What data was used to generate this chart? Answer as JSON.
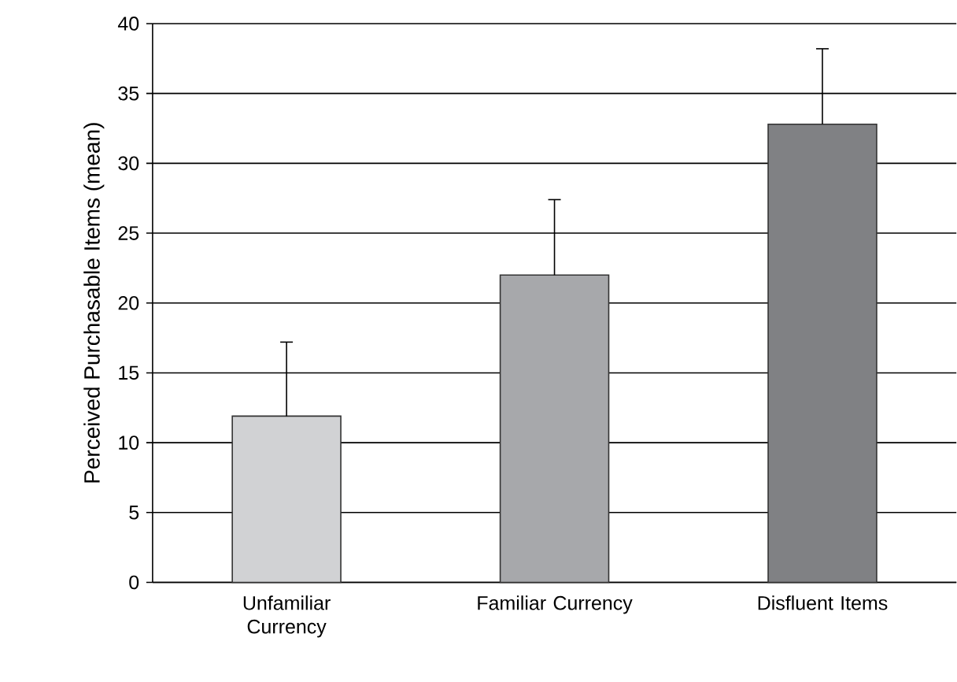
{
  "chart_data": {
    "type": "bar",
    "ylabel": "Perceived Purchasable Items (mean)",
    "categories": [
      "Unfamiliar Currency",
      "Familiar Currency",
      "Disfluent Items"
    ],
    "values": [
      11.9,
      22.0,
      32.8
    ],
    "errors": [
      5.3,
      5.4,
      5.4
    ],
    "colors": [
      "#d1d2d4",
      "#a7a8ab",
      "#808184"
    ],
    "ylim": [
      0,
      40
    ],
    "yticks": [
      0,
      5,
      10,
      15,
      20,
      25,
      30,
      35,
      40
    ],
    "grid": "y"
  }
}
